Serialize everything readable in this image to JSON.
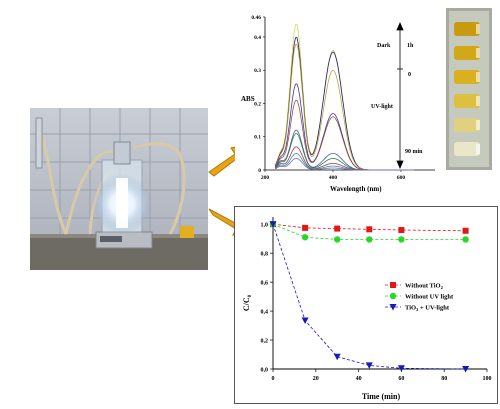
{
  "photos": {
    "setup": {
      "icon": "photoreactor-setup-photo"
    },
    "vials": {
      "icon": "sample-vials-photo"
    }
  },
  "arrows": {
    "icon": "orange-arrow-icon",
    "color": "#e8a317"
  },
  "chart_data": [
    {
      "type": "line",
      "title": "",
      "xlabel": "Wavelength (nm)",
      "ylabel": "ABS",
      "xlim": [
        200,
        700
      ],
      "ylim": [
        0,
        0.46
      ],
      "xticks": [
        "200",
        "400",
        "600"
      ],
      "yticks": [
        "0",
        "0.1",
        "0.2",
        "0.3",
        "0.4",
        "0.46"
      ],
      "annotations": {
        "dark": "Dark",
        "one_h": "1h",
        "zero": "0",
        "uv": "UV-light",
        "end": "90 min"
      },
      "series": [
        {
          "color": "#d6d65a",
          "peak1": 0.44,
          "peak2": 0.36
        },
        {
          "color": "#1c1c7a",
          "peak1": 0.4,
          "peak2": 0.355
        },
        {
          "color": "#b8a040",
          "peak1": 0.38,
          "peak2": 0.3
        },
        {
          "color": "#3434b0",
          "peak1": 0.26,
          "peak2": 0.17
        },
        {
          "color": "#a0522d",
          "peak1": 0.21,
          "peak2": 0.16
        },
        {
          "color": "#5050d0",
          "peak1": 0.12,
          "peak2": 0.05
        },
        {
          "color": "#209020",
          "peak1": 0.11,
          "peak2": 0.035
        },
        {
          "color": "#b03060",
          "peak1": 0.07,
          "peak2": 0.02
        },
        {
          "color": "#20a0a0",
          "peak1": 0.05,
          "peak2": 0.012
        },
        {
          "color": "#8060c0",
          "peak1": 0.035,
          "peak2": 0.006
        }
      ]
    },
    {
      "type": "line",
      "title": "",
      "xlabel": "Time (min)",
      "ylabel": "C/C",
      "ylabel_sub": "0",
      "xlim": [
        0,
        100
      ],
      "ylim": [
        0,
        1.05
      ],
      "xticks": [
        0,
        20,
        40,
        60,
        80,
        100
      ],
      "yticks": [
        "0,0",
        "0,2",
        "0,4",
        "0,6",
        "0,8",
        "1,0"
      ],
      "legend_position": "right",
      "x": [
        0,
        15,
        30,
        45,
        60,
        90
      ],
      "series": [
        {
          "name": "Without TiO",
          "name_sub": "2",
          "name_rest": "",
          "color": "#e01818",
          "marker": "square",
          "values": [
            1.0,
            0.975,
            0.97,
            0.965,
            0.96,
            0.955
          ]
        },
        {
          "name": "Without UV light",
          "name_sub": "",
          "name_rest": "",
          "color": "#28d828",
          "marker": "circle",
          "values": [
            1.0,
            0.91,
            0.895,
            0.895,
            0.895,
            0.895
          ]
        },
        {
          "name": "TiO",
          "name_sub": "2",
          "name_rest": " + UV-light",
          "color": "#1818c0",
          "marker": "triangle",
          "values": [
            1.0,
            0.335,
            0.085,
            0.025,
            0.005,
            0.0
          ]
        }
      ]
    }
  ]
}
